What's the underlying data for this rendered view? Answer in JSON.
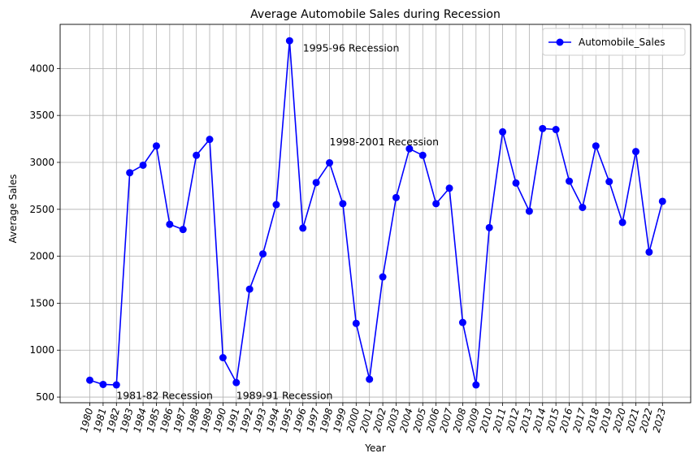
{
  "chart_data": {
    "type": "line",
    "title": "Average Automobile Sales during Recession",
    "xlabel": "Year",
    "ylabel": "Average Sales",
    "categories": [
      "1980",
      "1981",
      "1982",
      "1983",
      "1984",
      "1985",
      "1986",
      "1987",
      "1988",
      "1989",
      "1990",
      "1991",
      "1992",
      "1993",
      "1994",
      "1995",
      "1996",
      "1997",
      "1998",
      "1999",
      "2000",
      "2001",
      "2002",
      "2003",
      "2004",
      "2005",
      "2006",
      "2007",
      "2008",
      "2009",
      "2010",
      "2011",
      "2012",
      "2013",
      "2014",
      "2015",
      "2016",
      "2017",
      "2018",
      "2019",
      "2020",
      "2021",
      "2022",
      "2023"
    ],
    "series": [
      {
        "name": "Automobile_Sales",
        "color": "#0000ff",
        "marker": "circle",
        "values": [
          680,
          635,
          630,
          2890,
          2970,
          3175,
          2340,
          2285,
          3075,
          3245,
          920,
          655,
          1650,
          2025,
          2550,
          4295,
          2300,
          2785,
          2995,
          2560,
          1285,
          690,
          1780,
          2625,
          3145,
          3075,
          2560,
          2725,
          1295,
          630,
          2305,
          3325,
          2780,
          2480,
          3360,
          3350,
          2800,
          2520,
          3175,
          2795,
          2360,
          3115,
          2045,
          2585
        ]
      }
    ],
    "yticks": [
      500,
      1000,
      1500,
      2000,
      2500,
      3000,
      3500,
      4000
    ],
    "ylim": [
      440,
      4470
    ],
    "grid": true,
    "legend_position": "upper-right",
    "annotations": [
      {
        "text": "1981-82 Recession",
        "x": "1982",
        "y": 480
      },
      {
        "text": "1989-91 Recession",
        "x": "1991",
        "y": 480
      },
      {
        "text": "1995-96 Recession",
        "x": "1996",
        "y": 4180
      },
      {
        "text": "1998-2001 Recession",
        "x": "1998",
        "y": 3180
      }
    ]
  }
}
